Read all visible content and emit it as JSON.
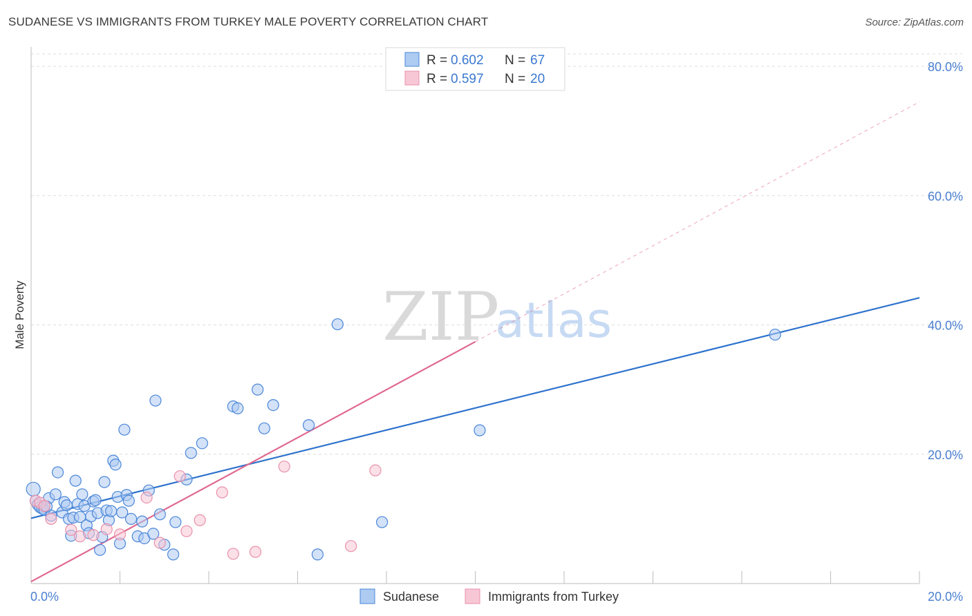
{
  "title": "SUDANESE VS IMMIGRANTS FROM TURKEY MALE POVERTY CORRELATION CHART",
  "source": "Source: ZipAtlas.com",
  "watermark": {
    "part1": "ZIP",
    "part2": "atlas"
  },
  "colors": {
    "blue": "#4a86d8",
    "blue_fill": "#aecbf2",
    "blue_line": "#2d72cc",
    "pink": "#e890ab",
    "pink_fill": "#f7c7d6",
    "pink_line": "#e06890",
    "grid": "#dcdcdc",
    "axis_label": "#4a7fd0"
  },
  "legend": {
    "rows": [
      {
        "r_label": "R =",
        "r_value": "0.602",
        "n_label": "N =",
        "n_value": "67",
        "series": "blue"
      },
      {
        "r_label": "R =",
        "r_value": "0.597",
        "n_label": "N =",
        "n_value": "20",
        "series": "pink"
      }
    ]
  },
  "chart_data": {
    "type": "scatter",
    "title": "SUDANESE VS IMMIGRANTS FROM TURKEY MALE POVERTY CORRELATION CHART",
    "xlabel": "",
    "ylabel": "Male Poverty",
    "xlim": [
      0,
      20
    ],
    "ylim": [
      0,
      80
    ],
    "x_tick_labels": [
      "0.0%",
      "20.0%"
    ],
    "y_ticks": [
      20,
      40,
      60,
      80
    ],
    "y_tick_labels": [
      "20.0%",
      "40.0%",
      "60.0%",
      "80.0%"
    ],
    "series": [
      {
        "name": "Sudanese",
        "color": "blue",
        "points": [
          [
            0.05,
            14.6
          ],
          [
            0.1,
            12.8
          ],
          [
            0.15,
            12.2
          ],
          [
            0.2,
            11.8
          ],
          [
            0.25,
            11.6
          ],
          [
            0.3,
            11.4
          ],
          [
            0.4,
            13.2
          ],
          [
            0.45,
            10.5
          ],
          [
            0.55,
            13.8
          ],
          [
            0.6,
            17.2
          ],
          [
            0.7,
            11.0
          ],
          [
            0.75,
            12.6
          ],
          [
            0.8,
            12.1
          ],
          [
            0.85,
            10.0
          ],
          [
            0.9,
            7.4
          ],
          [
            0.95,
            10.2
          ],
          [
            1.0,
            15.9
          ],
          [
            1.05,
            12.3
          ],
          [
            1.1,
            10.3
          ],
          [
            1.15,
            13.8
          ],
          [
            1.2,
            12.0
          ],
          [
            1.25,
            9.0
          ],
          [
            1.3,
            7.8
          ],
          [
            1.35,
            10.4
          ],
          [
            1.4,
            12.7
          ],
          [
            1.45,
            12.9
          ],
          [
            1.5,
            10.9
          ],
          [
            1.55,
            5.2
          ],
          [
            1.6,
            7.2
          ],
          [
            1.65,
            15.7
          ],
          [
            1.7,
            11.3
          ],
          [
            1.75,
            9.8
          ],
          [
            1.8,
            11.2
          ],
          [
            1.85,
            19.0
          ],
          [
            1.9,
            18.4
          ],
          [
            1.95,
            13.4
          ],
          [
            2.0,
            6.2
          ],
          [
            2.05,
            11.0
          ],
          [
            2.1,
            23.8
          ],
          [
            2.15,
            13.7
          ],
          [
            2.2,
            12.8
          ],
          [
            2.25,
            10.0
          ],
          [
            2.4,
            7.3
          ],
          [
            2.5,
            9.6
          ],
          [
            2.55,
            7.0
          ],
          [
            2.65,
            14.4
          ],
          [
            2.75,
            7.7
          ],
          [
            2.8,
            28.3
          ],
          [
            2.9,
            10.7
          ],
          [
            3.0,
            6.0
          ],
          [
            3.2,
            4.5
          ],
          [
            3.25,
            9.5
          ],
          [
            3.5,
            16.1
          ],
          [
            3.6,
            20.2
          ],
          [
            3.85,
            21.7
          ],
          [
            4.55,
            27.4
          ],
          [
            4.65,
            27.1
          ],
          [
            5.1,
            30.0
          ],
          [
            5.25,
            24.0
          ],
          [
            5.45,
            27.6
          ],
          [
            6.25,
            24.5
          ],
          [
            6.45,
            4.5
          ],
          [
            6.9,
            40.1
          ],
          [
            7.9,
            9.5
          ],
          [
            10.1,
            23.7
          ],
          [
            16.75,
            38.5
          ],
          [
            0.35,
            11.9
          ]
        ],
        "trend": {
          "x0": 0,
          "y0": 10.1,
          "x1": 20,
          "y1": 44.2,
          "solid_to": 20
        }
      },
      {
        "name": "Immigrants from Turkey",
        "color": "pink",
        "points": [
          [
            0.1,
            12.8
          ],
          [
            0.2,
            12.5
          ],
          [
            0.3,
            12.0
          ],
          [
            0.45,
            10.0
          ],
          [
            0.9,
            8.3
          ],
          [
            1.1,
            7.3
          ],
          [
            1.4,
            7.5
          ],
          [
            1.7,
            8.4
          ],
          [
            2.0,
            7.6
          ],
          [
            2.6,
            13.3
          ],
          [
            2.9,
            6.3
          ],
          [
            3.35,
            16.6
          ],
          [
            3.5,
            8.1
          ],
          [
            3.8,
            9.8
          ],
          [
            4.3,
            14.1
          ],
          [
            4.55,
            4.6
          ],
          [
            5.05,
            4.9
          ],
          [
            5.7,
            18.1
          ],
          [
            7.2,
            5.8
          ],
          [
            7.75,
            17.5
          ]
        ],
        "trend": {
          "x0": 0,
          "y0": 0.3,
          "x1": 20,
          "y1": 74.5,
          "solid_to": 10.0
        }
      }
    ],
    "legend_bottom": [
      "Sudanese",
      "Immigrants from Turkey"
    ]
  }
}
